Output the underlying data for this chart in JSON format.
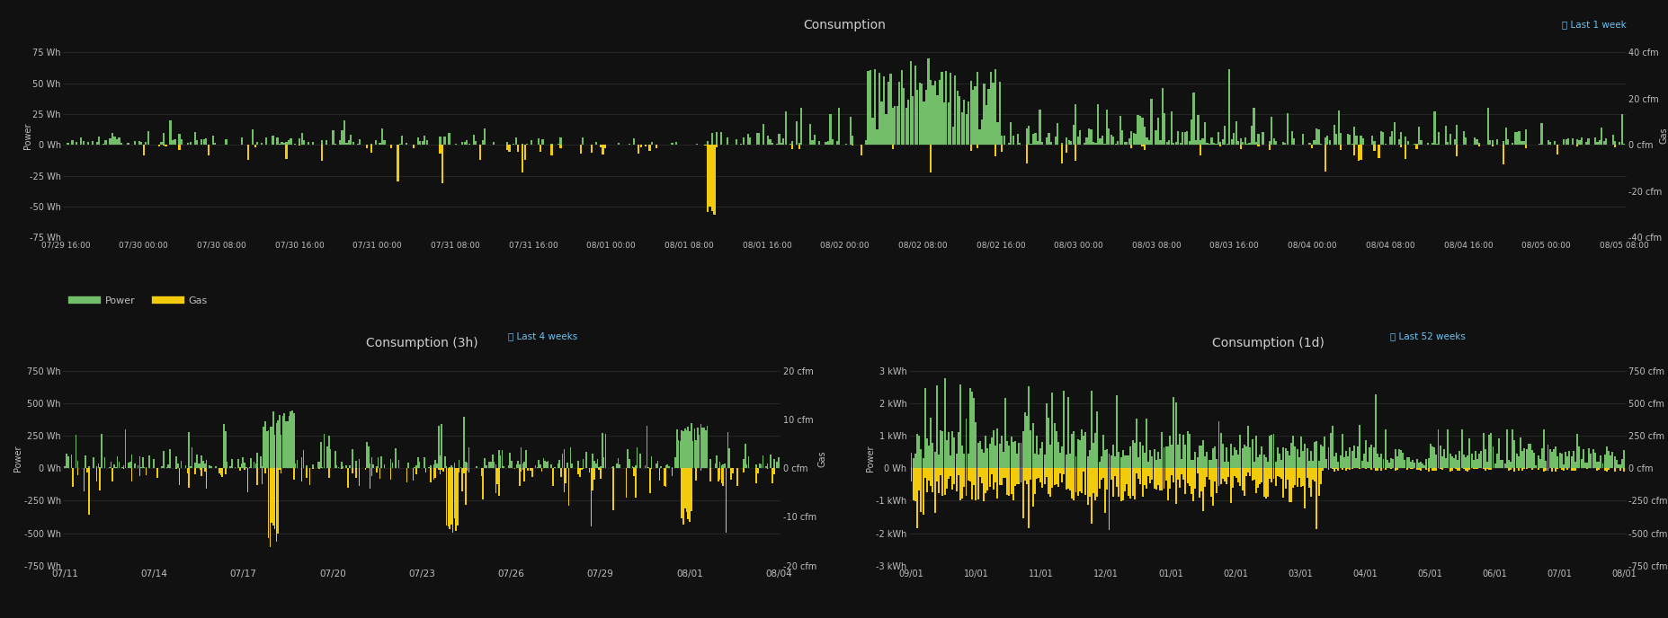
{
  "bg_color": "#111111",
  "grid_color": "#2a2a2a",
  "text_color": "#c0c0c0",
  "title_color": "#d0d0d0",
  "green_color": "#73bf69",
  "yellow_color": "#f2cc0c",
  "blue_info_color": "#6bc4f7",
  "top_title": "Consumption",
  "top_badge": "ⓘ Last 1 week",
  "top_yleft_ticks": [
    "75 Wh",
    "50 Wh",
    "25 Wh",
    "0 Wh",
    "-25 Wh",
    "-50 Wh",
    "-75 Wh"
  ],
  "top_yleft_vals": [
    75,
    50,
    25,
    0,
    -25,
    -50,
    -75
  ],
  "top_yright_ticks": [
    "40 cfm",
    "20 cfm",
    "0 cfm",
    "-20 cfm",
    "-40 cfm"
  ],
  "top_yright_vals": [
    40,
    20,
    0,
    -20,
    -40
  ],
  "top_xlabel_ticks": [
    "07/29 16:00",
    "07/30 00:00",
    "07/30 08:00",
    "07/30 16:00",
    "07/31 00:00",
    "07/31 08:00",
    "07/31 16:00",
    "08/01 00:00",
    "08/01 08:00",
    "08/01 16:00",
    "08/02 00:00",
    "08/02 08:00",
    "08/02 16:00",
    "08/03 00:00",
    "08/03 08:00",
    "08/03 16:00",
    "08/04 00:00",
    "08/04 08:00",
    "08/04 16:00",
    "08/05 00:00",
    "08/05 08:00"
  ],
  "top_legend_power": "Power",
  "top_legend_gas": "Gas",
  "mid_title": "Consumption (3h)",
  "mid_badge": "ⓘ Last 4 weeks",
  "mid_yleft_ticks": [
    "750 Wh",
    "500 Wh",
    "250 Wh",
    "0 Wh",
    "-250 Wh",
    "-500 Wh",
    "-750 Wh"
  ],
  "mid_yleft_vals": [
    750,
    500,
    250,
    0,
    -250,
    -500,
    -750
  ],
  "mid_yright_ticks": [
    "20 cfm",
    "10 cfm",
    "0 cfm",
    "-10 cfm",
    "-20 cfm"
  ],
  "mid_yright_vals": [
    20,
    10,
    0,
    -10,
    -20
  ],
  "mid_xlabel_ticks": [
    "07/11",
    "07/14",
    "07/17",
    "07/20",
    "07/23",
    "07/26",
    "07/29",
    "08/01",
    "08/04"
  ],
  "right_title": "Consumption (1d)",
  "right_badge": "ⓘ Last 52 weeks",
  "right_yleft_ticks": [
    "3 kWh",
    "2 kWh",
    "1 kWh",
    "0 Wh",
    "-1 kWh",
    "-2 kWh",
    "-3 kWh"
  ],
  "right_yleft_vals": [
    3000,
    2000,
    1000,
    0,
    -1000,
    -2000,
    -3000
  ],
  "right_yright_ticks": [
    "750 cfm",
    "500 cfm",
    "250 cfm",
    "0 cfm",
    "-250 cfm",
    "-500 cfm",
    "-750 cfm"
  ],
  "right_yright_vals": [
    750,
    500,
    250,
    0,
    -250,
    -500,
    -750
  ],
  "right_xlabel_ticks": [
    "09/01",
    "10/01",
    "11/01",
    "12/01",
    "01/01",
    "02/01",
    "03/01",
    "04/01",
    "05/01",
    "06/01",
    "07/01",
    "08/01"
  ]
}
